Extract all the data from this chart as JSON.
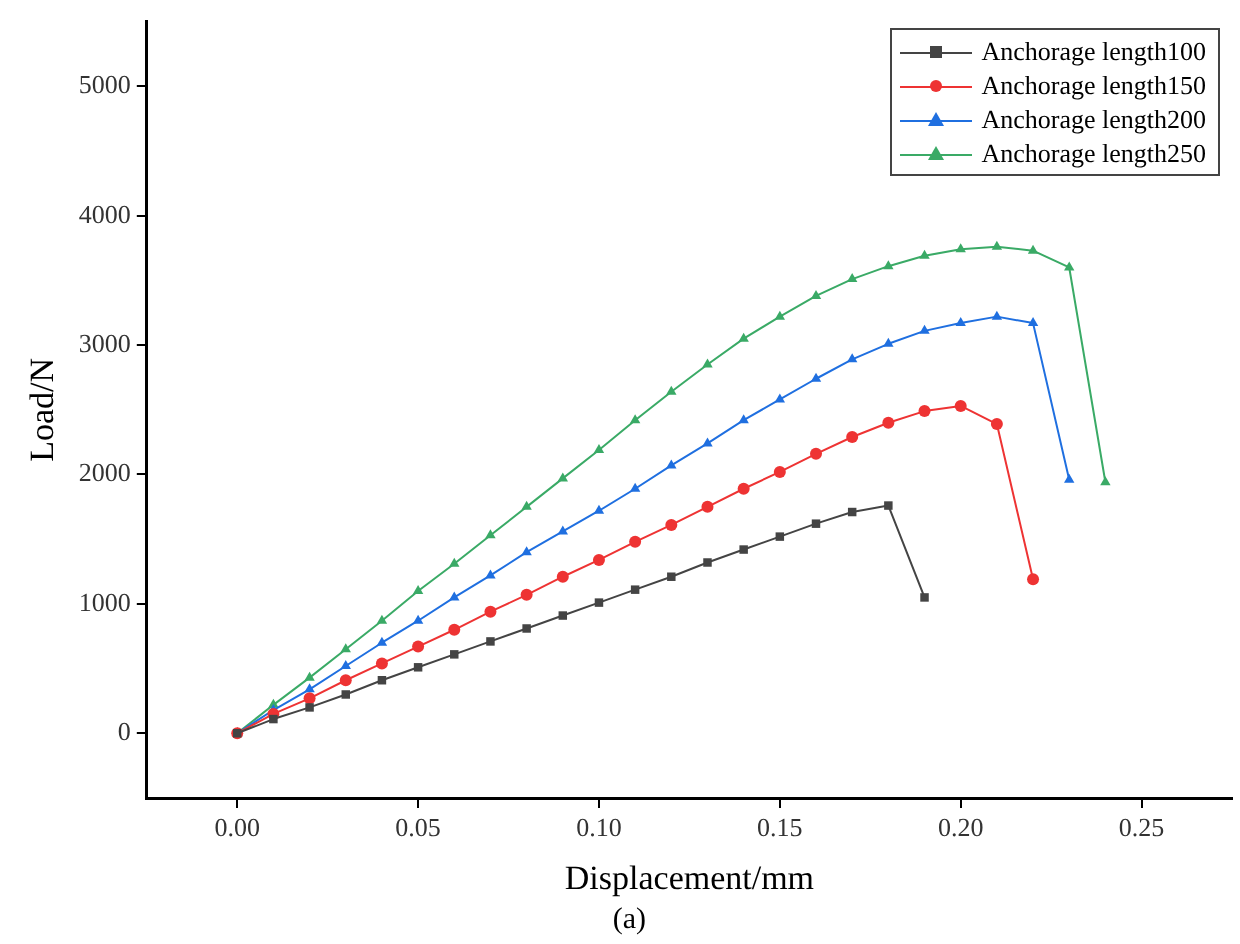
{
  "chart_data": {
    "type": "line",
    "xlabel": "Displacement/mm",
    "ylabel": "Load/N",
    "annotations": [
      "(a)"
    ],
    "xlim": [
      -0.025,
      0.275
    ],
    "xticks": [
      {
        "value": 0,
        "label": "0.00"
      },
      {
        "value": 0.05,
        "label": "0.05"
      },
      {
        "value": 0.1,
        "label": "0.10"
      },
      {
        "value": 0.15,
        "label": "0.15"
      },
      {
        "value": 0.2,
        "label": "0.20"
      },
      {
        "value": 0.25,
        "label": "0.25"
      }
    ],
    "ylim": [
      -500,
      5500
    ],
    "yticks": [
      0,
      1000,
      2000,
      3000,
      4000,
      5000
    ],
    "grid": false,
    "legend": "top right",
    "line_style": "solid",
    "series": [
      {
        "name": "Anchorage length100",
        "color": "#444444",
        "marker": "square",
        "x": [
          0,
          0.01,
          0.02,
          0.03,
          0.04,
          0.05,
          0.06,
          0.07,
          0.08,
          0.09,
          0.1,
          0.11,
          0.12,
          0.13,
          0.14,
          0.15,
          0.16,
          0.17,
          0.18,
          0.19
        ],
        "values": [
          0,
          110,
          200,
          300,
          410,
          510,
          610,
          710,
          810,
          910,
          1010,
          1110,
          1210,
          1320,
          1420,
          1520,
          1620,
          1710,
          1760,
          1050
        ]
      },
      {
        "name": "Anchorage length150",
        "color": "#ee3333",
        "marker": "circle",
        "x": [
          0,
          0.01,
          0.02,
          0.03,
          0.04,
          0.05,
          0.06,
          0.07,
          0.08,
          0.09,
          0.1,
          0.11,
          0.12,
          0.13,
          0.14,
          0.15,
          0.16,
          0.17,
          0.18,
          0.19,
          0.2,
          0.21,
          0.22
        ],
        "values": [
          0,
          150,
          270,
          410,
          540,
          670,
          800,
          940,
          1070,
          1210,
          1340,
          1480,
          1610,
          1750,
          1890,
          2020,
          2160,
          2290,
          2400,
          2490,
          2530,
          2390,
          1190
        ]
      },
      {
        "name": "Anchorage length200",
        "color": "#1f6fe0",
        "marker": "triangle",
        "x": [
          0,
          0.01,
          0.02,
          0.03,
          0.04,
          0.05,
          0.06,
          0.07,
          0.08,
          0.09,
          0.1,
          0.11,
          0.12,
          0.13,
          0.14,
          0.15,
          0.16,
          0.17,
          0.18,
          0.19,
          0.2,
          0.21,
          0.22,
          0.23
        ],
        "values": [
          0,
          180,
          340,
          520,
          700,
          870,
          1050,
          1220,
          1400,
          1560,
          1720,
          1890,
          2070,
          2240,
          2420,
          2580,
          2740,
          2890,
          3010,
          3110,
          3170,
          3220,
          3170,
          1960
        ]
      },
      {
        "name": "Anchorage length250",
        "color": "#3aaa66",
        "marker": "triangle",
        "x": [
          0,
          0.01,
          0.02,
          0.03,
          0.04,
          0.05,
          0.06,
          0.07,
          0.08,
          0.09,
          0.1,
          0.11,
          0.12,
          0.13,
          0.14,
          0.15,
          0.16,
          0.17,
          0.18,
          0.19,
          0.2,
          0.21,
          0.22,
          0.23,
          0.24
        ],
        "values": [
          0,
          220,
          430,
          650,
          870,
          1100,
          1310,
          1530,
          1750,
          1970,
          2190,
          2420,
          2640,
          2850,
          3050,
          3220,
          3380,
          3510,
          3610,
          3690,
          3740,
          3760,
          3730,
          3600,
          1940
        ]
      }
    ]
  }
}
